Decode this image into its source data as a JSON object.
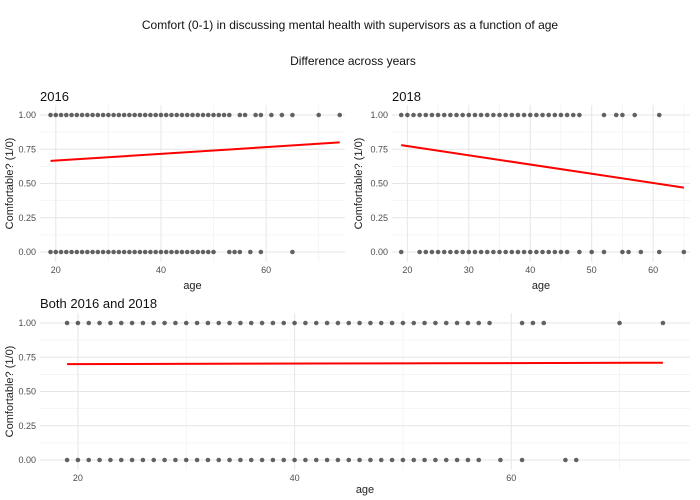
{
  "figure": {
    "title": "Comfort (0-1) in discussing mental health with supervisors as a function of age",
    "subtitle": "Difference across years"
  },
  "colors": {
    "points": "#000000",
    "trend": "#ff0000"
  },
  "chart_data": [
    {
      "type": "scatter",
      "title": "2016",
      "xlabel": "age",
      "ylabel": "Comfortable? (1/0)",
      "xlim": [
        17,
        75
      ],
      "ylim": [
        0,
        1
      ],
      "xticks": [
        20,
        40,
        60
      ],
      "yticks": [
        0.0,
        0.25,
        0.5,
        0.75,
        1.0
      ],
      "points_y1": [
        19,
        20,
        21,
        22,
        23,
        24,
        25,
        26,
        27,
        28,
        29,
        30,
        31,
        32,
        33,
        34,
        35,
        36,
        37,
        38,
        39,
        40,
        41,
        42,
        43,
        44,
        45,
        46,
        47,
        48,
        49,
        50,
        51,
        52,
        53,
        55,
        56,
        58,
        59,
        61,
        63,
        65,
        70,
        74
      ],
      "points_y0": [
        19,
        20,
        21,
        22,
        23,
        24,
        25,
        26,
        27,
        28,
        29,
        30,
        31,
        32,
        33,
        34,
        35,
        36,
        37,
        38,
        39,
        40,
        41,
        42,
        43,
        44,
        45,
        46,
        47,
        48,
        49,
        50,
        53,
        54,
        55,
        57,
        59,
        65
      ],
      "trend": {
        "x": [
          19,
          74
        ],
        "y": [
          0.665,
          0.8
        ]
      }
    },
    {
      "type": "scatter",
      "title": "2018",
      "xlabel": "age",
      "ylabel": "Comfortable? (1/0)",
      "xlim": [
        17.5,
        66
      ],
      "ylim": [
        0,
        1
      ],
      "xticks": [
        20,
        30,
        40,
        50,
        60
      ],
      "yticks": [
        0.0,
        0.25,
        0.5,
        0.75,
        1.0
      ],
      "points_y1": [
        19,
        20,
        21,
        22,
        23,
        24,
        25,
        26,
        27,
        28,
        29,
        30,
        31,
        32,
        33,
        34,
        35,
        36,
        37,
        38,
        39,
        40,
        41,
        42,
        43,
        44,
        45,
        46,
        47,
        48,
        52,
        54,
        55,
        57,
        61
      ],
      "points_y0": [
        19,
        22,
        23,
        24,
        25,
        26,
        27,
        28,
        29,
        30,
        31,
        32,
        33,
        34,
        35,
        36,
        37,
        38,
        39,
        40,
        41,
        42,
        43,
        44,
        45,
        46,
        48,
        50,
        52,
        55,
        56,
        58,
        61,
        65
      ],
      "trend": {
        "x": [
          19,
          65
        ],
        "y": [
          0.78,
          0.47
        ]
      }
    },
    {
      "type": "scatter",
      "title": "Both 2016 and 2018",
      "xlabel": "age",
      "ylabel": "Comfortable? (1/0)",
      "xlim": [
        16.5,
        76.5
      ],
      "ylim": [
        0,
        1
      ],
      "xticks": [
        20,
        40,
        60
      ],
      "yticks": [
        0.0,
        0.25,
        0.5,
        0.75,
        1.0
      ],
      "points_y1": [
        19,
        20,
        21,
        22,
        23,
        24,
        25,
        26,
        27,
        28,
        29,
        30,
        31,
        32,
        33,
        34,
        35,
        36,
        37,
        38,
        39,
        40,
        41,
        42,
        43,
        44,
        45,
        46,
        47,
        48,
        49,
        50,
        51,
        52,
        53,
        54,
        55,
        56,
        57,
        58,
        61,
        62,
        63,
        70,
        74
      ],
      "points_y0": [
        19,
        20,
        21,
        22,
        23,
        24,
        25,
        26,
        27,
        28,
        29,
        30,
        31,
        32,
        33,
        34,
        35,
        36,
        37,
        38,
        39,
        40,
        41,
        42,
        43,
        44,
        45,
        46,
        47,
        48,
        49,
        50,
        51,
        52,
        53,
        54,
        55,
        56,
        57,
        59,
        61,
        65,
        66
      ],
      "trend": {
        "x": [
          19,
          74
        ],
        "y": [
          0.7,
          0.71
        ]
      }
    }
  ]
}
